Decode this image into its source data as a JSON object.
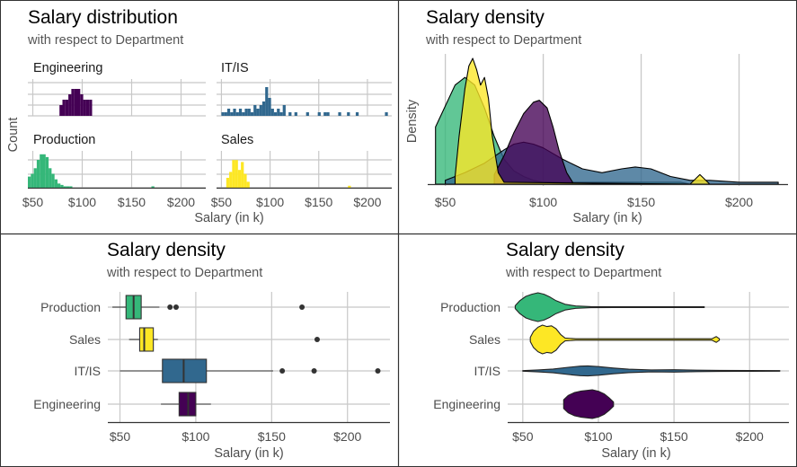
{
  "colors": {
    "Engineering": "#440154",
    "IT/IS": "#31688e",
    "Production": "#35b779",
    "Sales": "#fde725",
    "grid": "#c8c8c8",
    "axis": "#333333"
  },
  "panels": {
    "tl": {
      "title": "Salary distribution",
      "subtitle": "with respect to Department",
      "xlabel": "Salary (in k)",
      "ylabel": "Count"
    },
    "tr": {
      "title": "Salary density",
      "subtitle": "with respect to Department",
      "xlabel": "Salary (in k)",
      "ylabel": "Density"
    },
    "bl": {
      "title": "Salary density",
      "subtitle": "with respect to Department",
      "xlabel": "Salary (in k)"
    },
    "br": {
      "title": "Salary density",
      "subtitle": "with respect to Department",
      "xlabel": "Salary (in k)"
    }
  },
  "chart_data": [
    {
      "type": "bar",
      "title": "Salary distribution",
      "subtitle": "with respect to Department",
      "xlabel": "Salary (in k)",
      "ylabel": "Count",
      "xlim": [
        45,
        225
      ],
      "xticks": [
        50,
        100,
        150,
        200
      ],
      "xtick_labels": [
        "$50",
        "$100",
        "$150",
        "$200"
      ],
      "facets": [
        {
          "name": "Engineering",
          "bins": [
            [
              77,
              2
            ],
            [
              80,
              3
            ],
            [
              83,
              3
            ],
            [
              86,
              4
            ],
            [
              89,
              5
            ],
            [
              92,
              5
            ],
            [
              95,
              5
            ],
            [
              98,
              4
            ],
            [
              101,
              3
            ],
            [
              104,
              3
            ],
            [
              107,
              3
            ]
          ]
        },
        {
          "name": "IT/IS",
          "bins": [
            [
              50,
              1
            ],
            [
              53,
              1
            ],
            [
              56,
              2
            ],
            [
              59,
              1
            ],
            [
              62,
              2
            ],
            [
              65,
              1
            ],
            [
              68,
              2
            ],
            [
              71,
              1
            ],
            [
              74,
              2
            ],
            [
              77,
              2
            ],
            [
              80,
              1
            ],
            [
              83,
              3
            ],
            [
              86,
              2
            ],
            [
              89,
              3
            ],
            [
              92,
              4
            ],
            [
              95,
              8
            ],
            [
              98,
              5
            ],
            [
              101,
              2
            ],
            [
              104,
              1
            ],
            [
              107,
              2
            ],
            [
              110,
              1
            ],
            [
              113,
              3
            ],
            [
              119,
              1
            ],
            [
              125,
              1
            ],
            [
              137,
              1
            ],
            [
              149,
              1
            ],
            [
              155,
              1
            ],
            [
              158,
              1
            ],
            [
              170,
              1
            ],
            [
              179,
              1
            ],
            [
              188,
              1
            ],
            [
              218,
              1
            ]
          ]
        },
        {
          "name": "Production",
          "bins": [
            [
              45,
              8
            ],
            [
              48,
              10
            ],
            [
              51,
              14
            ],
            [
              54,
              20
            ],
            [
              57,
              24
            ],
            [
              60,
              24
            ],
            [
              63,
              22
            ],
            [
              66,
              14
            ],
            [
              69,
              10
            ],
            [
              72,
              6
            ],
            [
              75,
              3
            ],
            [
              78,
              2
            ],
            [
              81,
              1
            ],
            [
              84,
              1
            ],
            [
              87,
              1
            ],
            [
              170,
              1
            ]
          ]
        },
        {
          "name": "Sales",
          "bins": [
            [
              55,
              5
            ],
            [
              58,
              8
            ],
            [
              61,
              14
            ],
            [
              64,
              14
            ],
            [
              67,
              9
            ],
            [
              70,
              13
            ],
            [
              73,
              7
            ],
            [
              76,
              3
            ],
            [
              180,
              1
            ]
          ]
        }
      ]
    },
    {
      "type": "area",
      "title": "Salary density",
      "subtitle": "with respect to Department",
      "xlabel": "Salary (in k)",
      "ylabel": "Density",
      "xlim": [
        41,
        225
      ],
      "xticks": [
        50,
        100,
        150,
        200
      ],
      "xtick_labels": [
        "$50",
        "$100",
        "$150",
        "$200"
      ],
      "series": [
        {
          "name": "Production",
          "x": [
            45,
            50,
            55,
            60,
            65,
            70,
            75,
            80,
            85,
            90,
            95,
            100,
            170,
            175
          ],
          "y": [
            0.03,
            0.041,
            0.052,
            0.056,
            0.052,
            0.04,
            0.025,
            0.013,
            0.007,
            0.004,
            0.002,
            0.001,
            0.001,
            0
          ]
        },
        {
          "name": "IT/IS",
          "x": [
            50,
            60,
            70,
            80,
            85,
            90,
            95,
            100,
            110,
            120,
            130,
            140,
            147,
            155,
            165,
            175,
            185,
            200,
            220
          ],
          "y": [
            0.002,
            0.006,
            0.011,
            0.018,
            0.021,
            0.022,
            0.021,
            0.019,
            0.013,
            0.008,
            0.006,
            0.008,
            0.009,
            0.008,
            0.004,
            0.002,
            0.002,
            0.001,
            0.001
          ]
        },
        {
          "name": "Engineering",
          "x": [
            75,
            80,
            85,
            90,
            95,
            98,
            102,
            105,
            108,
            112,
            115
          ],
          "y": [
            0.005,
            0.015,
            0.027,
            0.037,
            0.043,
            0.044,
            0.04,
            0.03,
            0.018,
            0.006,
            0.001
          ]
        },
        {
          "name": "Sales",
          "x": [
            55,
            57,
            60,
            62,
            64,
            66,
            68,
            70,
            72,
            74,
            77,
            80,
            175,
            178,
            180,
            182,
            185
          ],
          "y": [
            0.004,
            0.025,
            0.05,
            0.062,
            0.066,
            0.06,
            0.052,
            0.056,
            0.045,
            0.025,
            0.006,
            0.001,
            0,
            0.003,
            0.005,
            0.003,
            0
          ]
        }
      ]
    },
    {
      "type": "box",
      "title": "Salary density",
      "subtitle": "with respect to Department",
      "xlabel": "Salary (in k)",
      "xlim": [
        42,
        228
      ],
      "xticks": [
        50,
        100,
        150,
        200
      ],
      "xtick_labels": [
        "$50",
        "$100",
        "$150",
        "$200"
      ],
      "categories": [
        "Production",
        "Sales",
        "IT/IS",
        "Engineering"
      ],
      "boxes": [
        {
          "name": "Production",
          "min": 45,
          "q1": 54,
          "median": 59,
          "q3": 64,
          "max": 76,
          "outliers": [
            83,
            87,
            170
          ]
        },
        {
          "name": "Sales",
          "min": 56,
          "q1": 63,
          "median": 66,
          "q3": 72,
          "max": 75,
          "outliers": [
            180
          ]
        },
        {
          "name": "IT/IS",
          "min": 50,
          "q1": 78,
          "median": 92,
          "q3": 107,
          "max": 151,
          "outliers": [
            157,
            178,
            220
          ]
        },
        {
          "name": "Engineering",
          "min": 77,
          "q1": 89,
          "median": 95,
          "q3": 100,
          "max": 110,
          "outliers": []
        }
      ]
    },
    {
      "type": "violin",
      "title": "Salary density",
      "subtitle": "with respect to Department",
      "xlabel": "Salary (in k)",
      "xlim": [
        40,
        226
      ],
      "xticks": [
        50,
        100,
        150,
        200
      ],
      "xtick_labels": [
        "$50",
        "$100",
        "$150",
        "$200"
      ],
      "categories": [
        "Production",
        "Sales",
        "IT/IS",
        "Engineering"
      ],
      "violins": [
        {
          "name": "Production",
          "x": [
            45,
            48,
            52,
            56,
            60,
            64,
            68,
            72,
            78,
            85,
            95,
            110,
            140,
            170
          ],
          "w": [
            0.1,
            0.45,
            0.75,
            0.9,
            1,
            0.9,
            0.7,
            0.45,
            0.2,
            0.08,
            0.04,
            0.03,
            0.03,
            0.03
          ]
        },
        {
          "name": "Sales",
          "x": [
            55,
            57,
            60,
            63,
            66,
            69,
            72,
            75,
            78,
            85,
            120,
            175,
            178,
            180
          ],
          "w": [
            0.15,
            0.55,
            0.85,
            1,
            0.9,
            0.95,
            0.75,
            0.35,
            0.1,
            0.05,
            0.05,
            0.05,
            0.2,
            0.05
          ]
        },
        {
          "name": "IT/IS",
          "x": [
            50,
            60,
            70,
            80,
            88,
            93,
            100,
            110,
            120,
            135,
            150,
            165,
            180,
            200,
            220
          ],
          "w": [
            0.02,
            0.07,
            0.13,
            0.25,
            0.33,
            0.35,
            0.3,
            0.2,
            0.12,
            0.07,
            0.08,
            0.05,
            0.04,
            0.03,
            0.02
          ]
        },
        {
          "name": "Engineering",
          "x": [
            77,
            80,
            84,
            88,
            92,
            96,
            100,
            104,
            107,
            110
          ],
          "w": [
            0.3,
            0.6,
            0.8,
            0.9,
            0.95,
            1,
            0.9,
            0.7,
            0.45,
            0.15
          ]
        }
      ]
    }
  ]
}
